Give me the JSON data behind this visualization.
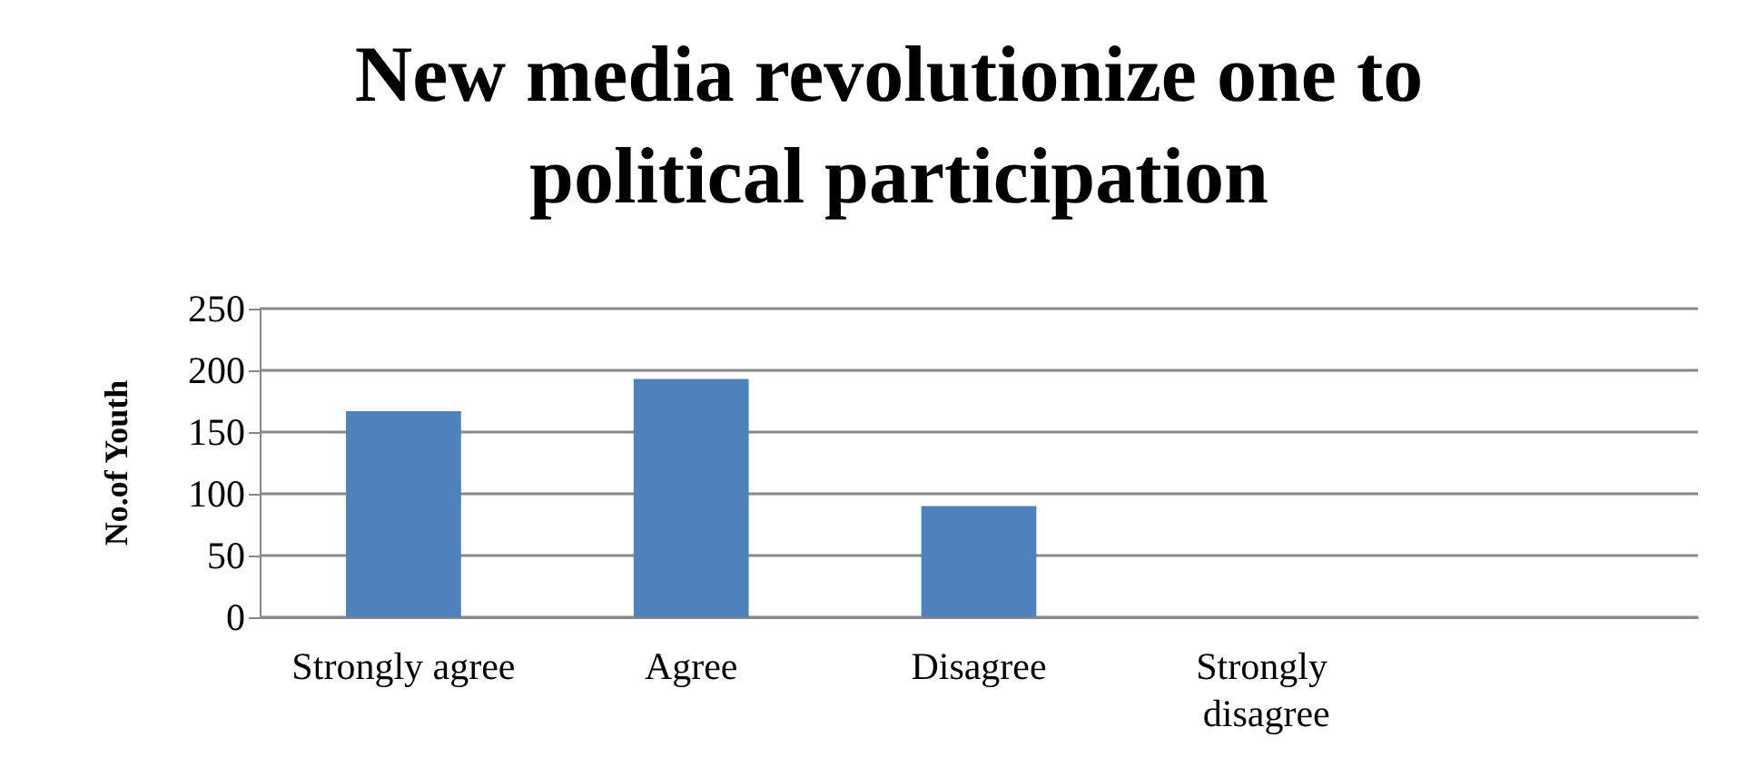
{
  "chart_data": {
    "type": "bar",
    "title": "New media revolutionize one to political participation",
    "ylabel": "No.of Youth",
    "categories": [
      "Strongly agree",
      "Agree",
      "Disagree",
      "Strongly disagree",
      null
    ],
    "values": [
      167,
      193,
      90,
      0,
      null
    ],
    "color": "#4f81bd",
    "ylim": [
      0,
      250
    ],
    "yticks": [
      0,
      50,
      100,
      150,
      200,
      250
    ],
    "grid": "y"
  }
}
